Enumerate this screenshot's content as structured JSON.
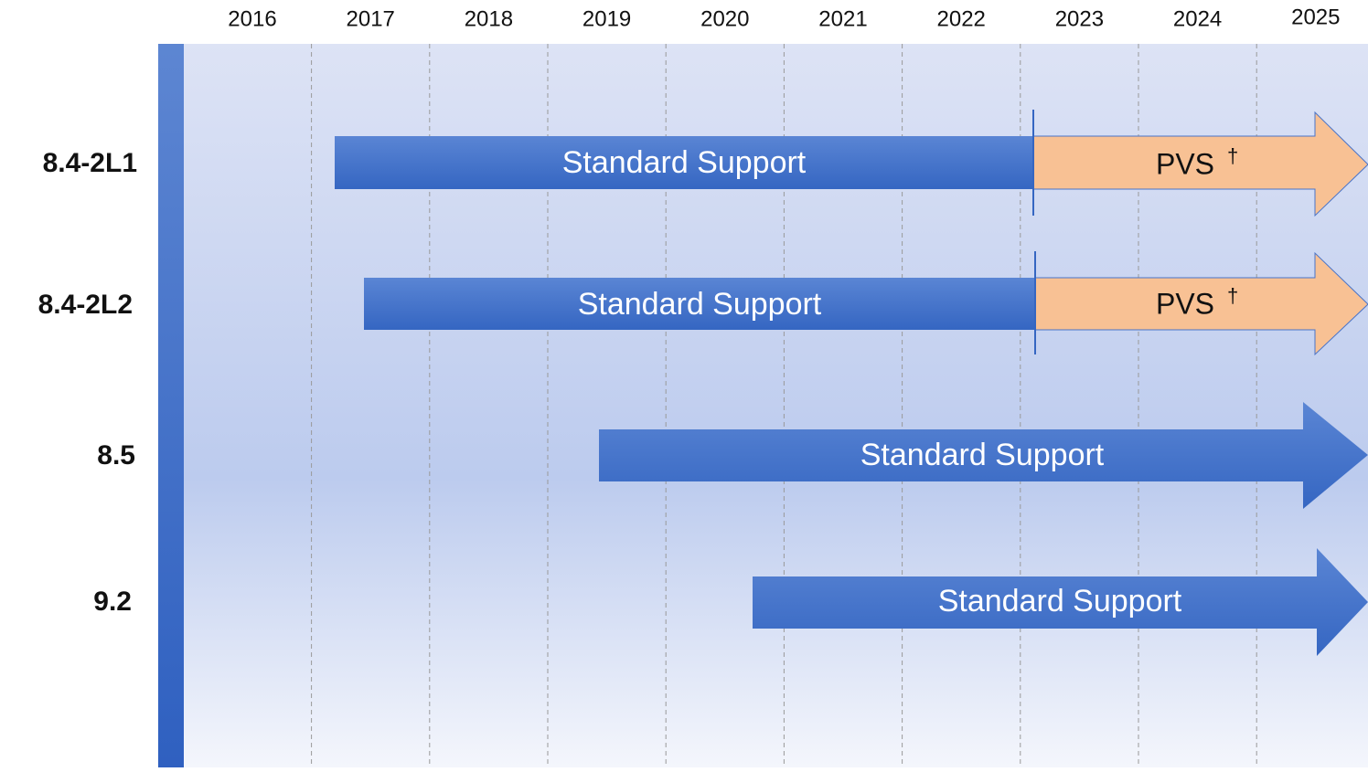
{
  "years": [
    "2016",
    "2017",
    "2018",
    "2019",
    "2020",
    "2021",
    "2022",
    "2023",
    "2024",
    "2025"
  ],
  "rows": [
    {
      "label": "8.4-2L1",
      "segments": [
        {
          "text": "Standard Support"
        },
        {
          "text": "PVS",
          "note": "†"
        }
      ]
    },
    {
      "label": "8.4-2L2",
      "segments": [
        {
          "text": "Standard Support"
        },
        {
          "text": "PVS",
          "note": "†"
        }
      ]
    },
    {
      "label": "8.5",
      "segments": [
        {
          "text": "Standard Support"
        }
      ]
    },
    {
      "label": "9.2",
      "segments": [
        {
          "text": "Standard Support"
        }
      ]
    }
  ]
}
